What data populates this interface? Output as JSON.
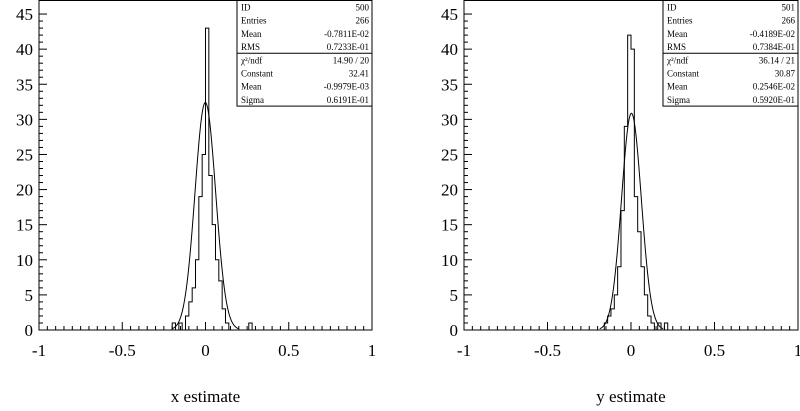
{
  "chart_data": [
    {
      "type": "histogram",
      "xlabel": "x estimate",
      "ylabel": "",
      "xlim": [
        -1,
        1
      ],
      "ylim": [
        0,
        47
      ],
      "x_ticks": [
        "-1",
        "-0.5",
        "0",
        "0.5",
        "1"
      ],
      "x_tick_values": [
        -1,
        -0.5,
        0,
        0.5,
        1
      ],
      "y_ticks": [
        "0",
        "5",
        "10",
        "15",
        "20",
        "25",
        "30",
        "35",
        "40",
        "45"
      ],
      "y_tick_values": [
        0,
        5,
        10,
        15,
        20,
        25,
        30,
        35,
        40,
        45
      ],
      "bin_range": [
        -1,
        1
      ],
      "bins": 100,
      "counts": [
        0,
        0,
        0,
        0,
        0,
        0,
        0,
        0,
        0,
        0,
        0,
        0,
        0,
        0,
        0,
        0,
        0,
        0,
        0,
        0,
        0,
        0,
        0,
        0,
        0,
        0,
        0,
        0,
        0,
        0,
        0,
        0,
        0,
        0,
        0,
        0,
        0,
        0,
        0,
        0,
        1,
        0,
        1,
        0,
        2,
        4,
        6,
        10,
        19,
        25,
        43,
        22,
        15,
        10,
        7,
        3,
        1,
        0,
        0,
        0,
        0,
        0,
        0,
        1,
        0,
        0,
        0,
        0,
        0,
        0,
        0,
        0,
        0,
        0,
        0,
        0,
        0,
        0,
        0,
        0,
        0,
        0,
        0,
        0,
        0,
        0,
        0,
        0,
        0,
        0,
        0,
        0,
        0,
        0,
        0,
        0,
        0,
        0,
        0,
        0
      ],
      "fit": {
        "constant": 32.41,
        "mean": -0.0009979,
        "sigma": 0.06191
      },
      "stats": [
        {
          "label": "ID",
          "value": "500"
        },
        {
          "label": "Entries",
          "value": "266"
        },
        {
          "label": "Mean",
          "value": "-0.7811E-02"
        },
        {
          "label": "RMS",
          "value": "0.7233E-01"
        },
        {
          "label": "χ²/ndf",
          "value": "14.90   /   20"
        },
        {
          "label": "Constant",
          "value": "32.41"
        },
        {
          "label": "Mean",
          "value": "-0.9979E-03"
        },
        {
          "label": "Sigma",
          "value": "0.6191E-01"
        }
      ]
    },
    {
      "type": "histogram",
      "xlabel": "y estimate",
      "ylabel": "",
      "xlim": [
        -1,
        1
      ],
      "ylim": [
        0,
        47
      ],
      "x_ticks": [
        "-1",
        "-0.5",
        "0",
        "0.5",
        "1"
      ],
      "x_tick_values": [
        -1,
        -0.5,
        0,
        0.5,
        1
      ],
      "y_ticks": [
        "0",
        "5",
        "10",
        "15",
        "20",
        "25",
        "30",
        "35",
        "40",
        "45"
      ],
      "y_tick_values": [
        0,
        5,
        10,
        15,
        20,
        25,
        30,
        35,
        40,
        45
      ],
      "bin_range": [
        -1,
        1
      ],
      "bins": 100,
      "counts": [
        0,
        0,
        0,
        0,
        0,
        0,
        0,
        0,
        0,
        0,
        0,
        0,
        0,
        0,
        0,
        0,
        0,
        0,
        0,
        0,
        0,
        0,
        0,
        0,
        0,
        0,
        0,
        0,
        0,
        0,
        0,
        0,
        0,
        0,
        0,
        0,
        0,
        0,
        0,
        0,
        0,
        0,
        1,
        2,
        3,
        5,
        9,
        17,
        29,
        42,
        40,
        19,
        14,
        9,
        5,
        2,
        1,
        0,
        1,
        0,
        1,
        0,
        0,
        0,
        0,
        0,
        0,
        0,
        0,
        0,
        0,
        0,
        0,
        0,
        0,
        0,
        0,
        0,
        0,
        0,
        0,
        0,
        0,
        0,
        0,
        0,
        0,
        0,
        0,
        0,
        0,
        0,
        0,
        0,
        0,
        0,
        0,
        0,
        0,
        0
      ],
      "fit": {
        "constant": 30.87,
        "mean": 0.002546,
        "sigma": 0.0592
      },
      "stats": [
        {
          "label": "ID",
          "value": "501"
        },
        {
          "label": "Entries",
          "value": "266"
        },
        {
          "label": "Mean",
          "value": "-0.4189E-02"
        },
        {
          "label": "RMS",
          "value": "0.7384E-01"
        },
        {
          "label": "χ²/ndf",
          "value": "36.14   /   21"
        },
        {
          "label": "Constant",
          "value": "30.87"
        },
        {
          "label": "Mean",
          "value": "0.2546E-02"
        },
        {
          "label": "Sigma",
          "value": "0.5920E-01"
        }
      ]
    }
  ]
}
